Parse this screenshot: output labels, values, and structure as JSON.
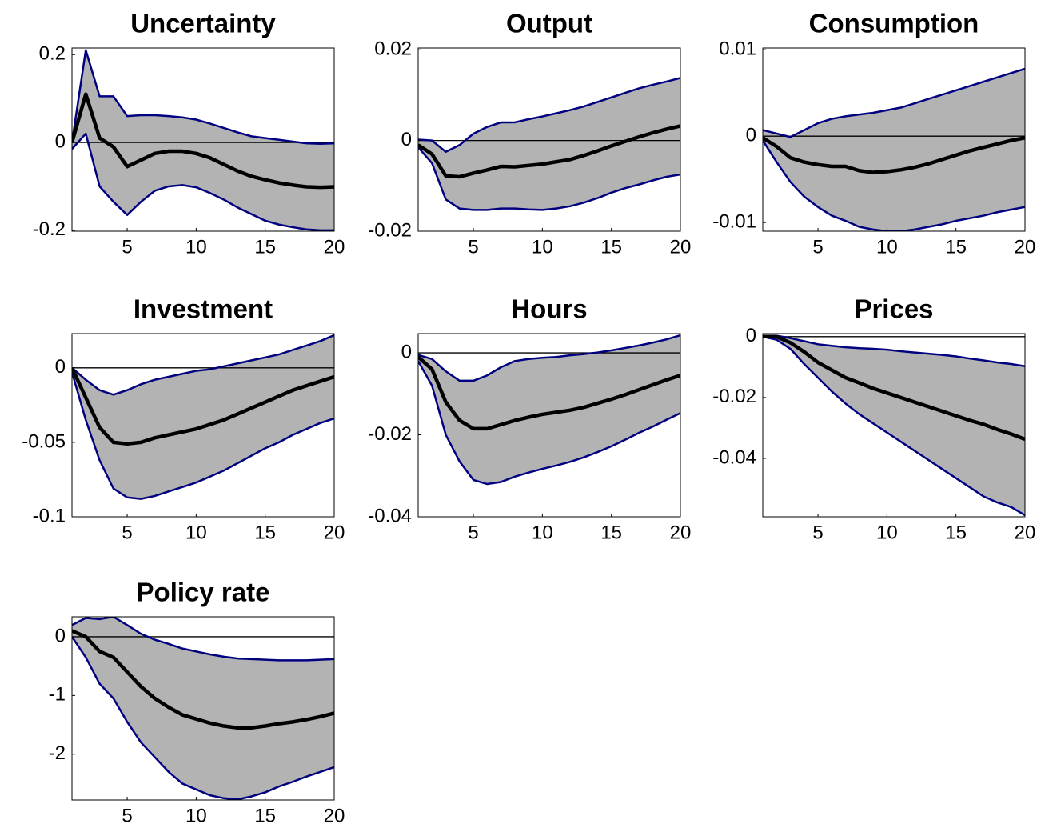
{
  "chart_data": [
    {
      "type": "line",
      "title": "Uncertainty",
      "x": [
        1,
        2,
        3,
        4,
        5,
        6,
        7,
        8,
        9,
        10,
        11,
        12,
        13,
        14,
        15,
        16,
        17,
        18,
        19,
        20
      ],
      "xlim": [
        1,
        20
      ],
      "xticks": [
        5,
        10,
        15,
        20
      ],
      "ylim": [
        -0.202,
        0.215
      ],
      "yticks": [
        -0.2,
        0,
        0.2
      ],
      "hline": 0,
      "band_color": "#b3b3b3",
      "series": [
        {
          "color": "#000000",
          "values": [
            0.0,
            0.11,
            0.01,
            -0.01,
            -0.055,
            -0.04,
            -0.025,
            -0.02,
            -0.02,
            -0.025,
            -0.035,
            -0.05,
            -0.065,
            -0.077,
            -0.085,
            -0.092,
            -0.097,
            -0.101,
            -0.102,
            -0.101
          ]
        },
        {
          "color": "#000080",
          "values": [
            -0.015,
            0.02,
            -0.1,
            -0.135,
            -0.165,
            -0.135,
            -0.11,
            -0.1,
            -0.097,
            -0.102,
            -0.115,
            -0.13,
            -0.148,
            -0.163,
            -0.178,
            -0.187,
            -0.193,
            -0.198,
            -0.2,
            -0.2
          ]
        },
        {
          "color": "#000080",
          "values": [
            0.0,
            0.21,
            0.105,
            0.105,
            0.06,
            0.062,
            0.062,
            0.06,
            0.057,
            0.052,
            0.043,
            0.033,
            0.023,
            0.014,
            0.01,
            0.006,
            0.002,
            -0.002,
            -0.003,
            -0.002
          ]
        }
      ]
    },
    {
      "type": "line",
      "title": "Output",
      "x": [
        1,
        2,
        3,
        4,
        5,
        6,
        7,
        8,
        9,
        10,
        11,
        12,
        13,
        14,
        15,
        16,
        17,
        18,
        19,
        20
      ],
      "xlim": [
        1,
        20
      ],
      "xticks": [
        5,
        10,
        15,
        20
      ],
      "ylim": [
        -0.02,
        0.0204
      ],
      "yticks": [
        -0.02,
        0,
        0.02
      ],
      "hline": 0,
      "band_color": "#b3b3b3",
      "series": [
        {
          "color": "#000000",
          "values": [
            -0.001,
            -0.003,
            -0.0078,
            -0.008,
            -0.0072,
            -0.0065,
            -0.0057,
            -0.0058,
            -0.0055,
            -0.0052,
            -0.0047,
            -0.0042,
            -0.0033,
            -0.0023,
            -0.0012,
            -0.0002,
            0.0008,
            0.0017,
            0.0025,
            0.0032
          ]
        },
        {
          "color": "#000080",
          "values": [
            -0.0015,
            -0.005,
            -0.013,
            -0.015,
            -0.0153,
            -0.0153,
            -0.015,
            -0.015,
            -0.0152,
            -0.0153,
            -0.015,
            -0.0145,
            -0.0137,
            -0.0127,
            -0.0115,
            -0.0105,
            -0.0097,
            -0.0088,
            -0.008,
            -0.0075
          ]
        },
        {
          "color": "#000080",
          "values": [
            0.0002,
            0.0,
            -0.0025,
            -0.001,
            0.0015,
            0.003,
            0.004,
            0.004,
            0.0047,
            0.0053,
            0.006,
            0.0067,
            0.0075,
            0.0085,
            0.0095,
            0.0105,
            0.0115,
            0.0123,
            0.013,
            0.0138
          ]
        }
      ]
    },
    {
      "type": "line",
      "title": "Consumption",
      "x": [
        1,
        2,
        3,
        4,
        5,
        6,
        7,
        8,
        9,
        10,
        11,
        12,
        13,
        14,
        15,
        16,
        17,
        18,
        19,
        20
      ],
      "xlim": [
        1,
        20
      ],
      "xticks": [
        5,
        10,
        15,
        20
      ],
      "ylim": [
        -0.011,
        0.0102
      ],
      "yticks": [
        -0.01,
        0,
        0.01
      ],
      "hline": 0,
      "band_color": "#b3b3b3",
      "series": [
        {
          "color": "#000000",
          "values": [
            -0.0002,
            -0.0012,
            -0.0025,
            -0.003,
            -0.0033,
            -0.0035,
            -0.0035,
            -0.004,
            -0.0042,
            -0.0041,
            -0.0039,
            -0.0036,
            -0.0032,
            -0.0027,
            -0.0022,
            -0.0017,
            -0.0013,
            -0.0009,
            -0.0005,
            -0.0002
          ]
        },
        {
          "color": "#000080",
          "values": [
            -0.0005,
            -0.003,
            -0.0053,
            -0.007,
            -0.0082,
            -0.0092,
            -0.0098,
            -0.0105,
            -0.0108,
            -0.011,
            -0.011,
            -0.0108,
            -0.0105,
            -0.0102,
            -0.0098,
            -0.0095,
            -0.0092,
            -0.0088,
            -0.0085,
            -0.0082
          ]
        },
        {
          "color": "#000080",
          "values": [
            0.0007,
            0.0003,
            -0.0001,
            0.0007,
            0.0015,
            0.002,
            0.0023,
            0.0025,
            0.0027,
            0.003,
            0.0033,
            0.0038,
            0.0043,
            0.0048,
            0.0053,
            0.0058,
            0.0063,
            0.0068,
            0.0073,
            0.0078
          ]
        }
      ]
    },
    {
      "type": "line",
      "title": "Investment",
      "x": [
        1,
        2,
        3,
        4,
        5,
        6,
        7,
        8,
        9,
        10,
        11,
        12,
        13,
        14,
        15,
        16,
        17,
        18,
        19,
        20
      ],
      "xlim": [
        1,
        20
      ],
      "xticks": [
        5,
        10,
        15,
        20
      ],
      "ylim": [
        -0.1,
        0.023
      ],
      "yticks": [
        -0.1,
        -0.05,
        0
      ],
      "hline": 0,
      "band_color": "#b3b3b3",
      "series": [
        {
          "color": "#000000",
          "values": [
            0,
            -0.02,
            -0.04,
            -0.05,
            -0.051,
            -0.05,
            -0.047,
            -0.045,
            -0.043,
            -0.041,
            -0.038,
            -0.035,
            -0.031,
            -0.027,
            -0.023,
            -0.019,
            -0.015,
            -0.012,
            -0.009,
            -0.006
          ]
        },
        {
          "color": "#000080",
          "values": [
            -0.003,
            -0.035,
            -0.062,
            -0.081,
            -0.087,
            -0.088,
            -0.086,
            -0.083,
            -0.08,
            -0.077,
            -0.073,
            -0.069,
            -0.064,
            -0.059,
            -0.054,
            -0.05,
            -0.045,
            -0.041,
            -0.037,
            -0.034
          ]
        },
        {
          "color": "#000080",
          "values": [
            0,
            -0.008,
            -0.015,
            -0.018,
            -0.015,
            -0.011,
            -0.008,
            -0.006,
            -0.004,
            -0.002,
            -0.001,
            0.001,
            0.003,
            0.005,
            0.007,
            0.009,
            0.012,
            0.015,
            0.018,
            0.022
          ]
        }
      ]
    },
    {
      "type": "line",
      "title": "Hours",
      "x": [
        1,
        2,
        3,
        4,
        5,
        6,
        7,
        8,
        9,
        10,
        11,
        12,
        13,
        14,
        15,
        16,
        17,
        18,
        19,
        20
      ],
      "xlim": [
        1,
        20
      ],
      "xticks": [
        5,
        10,
        15,
        20
      ],
      "ylim": [
        -0.04,
        0.0047
      ],
      "yticks": [
        -0.04,
        -0.02,
        0
      ],
      "hline": 0,
      "band_color": "#b3b3b3",
      "series": [
        {
          "color": "#000000",
          "values": [
            -0.001,
            -0.004,
            -0.012,
            -0.0165,
            -0.0185,
            -0.0185,
            -0.0175,
            -0.0165,
            -0.0157,
            -0.015,
            -0.0145,
            -0.014,
            -0.0133,
            -0.0123,
            -0.0113,
            -0.0102,
            -0.009,
            -0.0078,
            -0.0066,
            -0.0055
          ]
        },
        {
          "color": "#000080",
          "values": [
            -0.002,
            -0.008,
            -0.02,
            -0.0265,
            -0.031,
            -0.032,
            -0.0315,
            -0.0302,
            -0.0292,
            -0.0283,
            -0.0275,
            -0.0266,
            -0.0255,
            -0.0242,
            -0.0228,
            -0.0212,
            -0.0195,
            -0.018,
            -0.0163,
            -0.0147
          ]
        },
        {
          "color": "#000080",
          "values": [
            -0.0005,
            -0.0015,
            -0.0045,
            -0.0068,
            -0.0068,
            -0.0055,
            -0.0035,
            -0.002,
            -0.0015,
            -0.0012,
            -0.001,
            -0.0006,
            -0.0003,
            0.0001,
            0.0006,
            0.0012,
            0.0018,
            0.0025,
            0.0033,
            0.0043
          ]
        }
      ]
    },
    {
      "type": "line",
      "title": "Prices",
      "x": [
        1,
        2,
        3,
        4,
        5,
        6,
        7,
        8,
        9,
        10,
        11,
        12,
        13,
        14,
        15,
        16,
        17,
        18,
        19,
        20
      ],
      "xlim": [
        1,
        20
      ],
      "xticks": [
        5,
        10,
        15,
        20
      ],
      "ylim": [
        -0.0592,
        0.001
      ],
      "yticks": [
        -0.04,
        -0.02,
        0
      ],
      "hline": 0,
      "band_color": "#b3b3b3",
      "series": [
        {
          "color": "#000000",
          "values": [
            0,
            0,
            -0.002,
            -0.005,
            -0.0085,
            -0.011,
            -0.0135,
            -0.0152,
            -0.017,
            -0.0185,
            -0.02,
            -0.0215,
            -0.023,
            -0.0245,
            -0.026,
            -0.0275,
            -0.0288,
            -0.0305,
            -0.032,
            -0.0337
          ]
        },
        {
          "color": "#000080",
          "values": [
            0,
            -0.001,
            -0.004,
            -0.009,
            -0.0135,
            -0.018,
            -0.022,
            -0.0255,
            -0.0285,
            -0.0315,
            -0.0345,
            -0.0375,
            -0.0405,
            -0.0435,
            -0.0465,
            -0.0495,
            -0.0525,
            -0.0545,
            -0.056,
            -0.0587
          ]
        },
        {
          "color": "#000080",
          "values": [
            0.0003,
            0.0003,
            -0.0005,
            -0.0015,
            -0.0025,
            -0.003,
            -0.0035,
            -0.0038,
            -0.004,
            -0.0043,
            -0.0048,
            -0.0052,
            -0.0056,
            -0.006,
            -0.0065,
            -0.0072,
            -0.0078,
            -0.0085,
            -0.009,
            -0.0097
          ]
        }
      ]
    },
    {
      "type": "line",
      "title": "Policy rate",
      "x": [
        1,
        2,
        3,
        4,
        5,
        6,
        7,
        8,
        9,
        10,
        11,
        12,
        13,
        14,
        15,
        16,
        17,
        18,
        19,
        20
      ],
      "xlim": [
        1,
        20
      ],
      "xticks": [
        5,
        10,
        15,
        20
      ],
      "ylim": [
        -2.78,
        0.34
      ],
      "yticks": [
        -2,
        -1,
        0
      ],
      "hline": 0,
      "band_color": "#b3b3b3",
      "series": [
        {
          "color": "#000000",
          "values": [
            0.1,
            0.0,
            -0.25,
            -0.35,
            -0.6,
            -0.85,
            -1.05,
            -1.2,
            -1.33,
            -1.4,
            -1.47,
            -1.52,
            -1.55,
            -1.55,
            -1.52,
            -1.48,
            -1.45,
            -1.41,
            -1.36,
            -1.3
          ]
        },
        {
          "color": "#000080",
          "values": [
            0,
            -0.35,
            -0.8,
            -1.05,
            -1.45,
            -1.8,
            -2.05,
            -2.3,
            -2.5,
            -2.6,
            -2.7,
            -2.75,
            -2.77,
            -2.72,
            -2.65,
            -2.55,
            -2.47,
            -2.38,
            -2.3,
            -2.22
          ]
        },
        {
          "color": "#000080",
          "values": [
            0.2,
            0.32,
            0.3,
            0.34,
            0.2,
            0.05,
            -0.05,
            -0.12,
            -0.2,
            -0.25,
            -0.3,
            -0.34,
            -0.37,
            -0.38,
            -0.39,
            -0.4,
            -0.4,
            -0.4,
            -0.39,
            -0.38
          ]
        }
      ]
    }
  ]
}
